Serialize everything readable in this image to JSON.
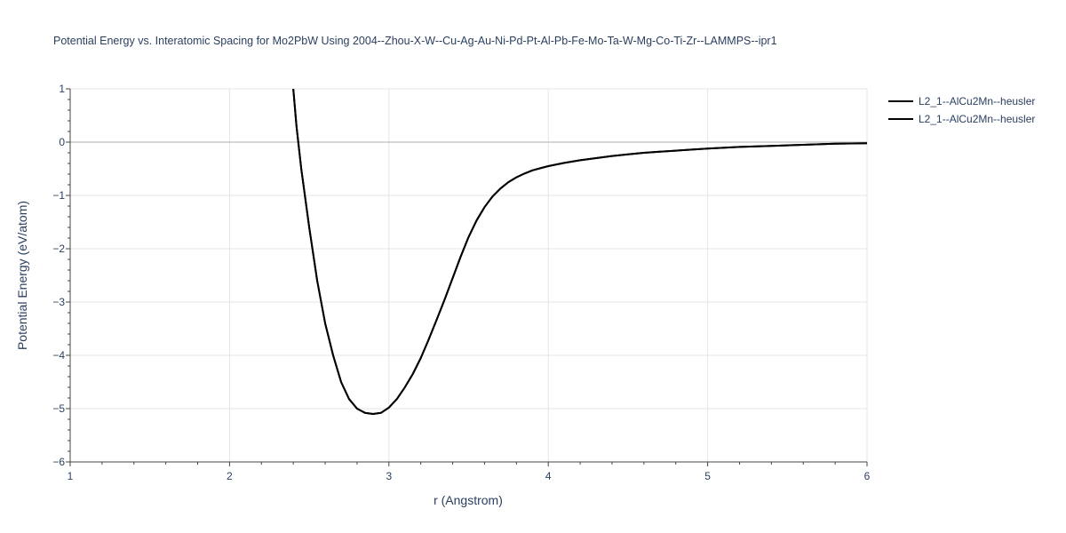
{
  "chart_data": {
    "type": "line",
    "title": "Potential Energy vs. Interatomic Spacing for Mo2PbW Using 2004--Zhou-X-W--Cu-Ag-Au-Ni-Pd-Pt-Al-Pb-Fe-Mo-Ta-W-Mg-Co-Ti-Zr--LAMMPS--ipr1",
    "xlabel": "r (Angstrom)",
    "ylabel": "Potential Energy (eV/atom)",
    "xlim": [
      1,
      6
    ],
    "ylim": [
      -6,
      1
    ],
    "x_ticks": [
      1,
      2,
      3,
      4,
      5,
      6
    ],
    "x_tick_labels": [
      "1",
      "2",
      "3",
      "4",
      "5",
      "6"
    ],
    "y_ticks": [
      -6,
      -5,
      -4,
      -3,
      -2,
      -1,
      0,
      1
    ],
    "y_tick_labels": [
      "−6",
      "−5",
      "−4",
      "−3",
      "−2",
      "−1",
      "0",
      "1"
    ],
    "grid": true,
    "legend_position": "top-right",
    "series": [
      {
        "name": "L2_1--AlCu2Mn--heusler",
        "color": "#000000",
        "x": [
          2.4,
          2.42,
          2.45,
          2.5,
          2.55,
          2.6,
          2.65,
          2.7,
          2.75,
          2.8,
          2.85,
          2.9,
          2.95,
          3.0,
          3.05,
          3.1,
          3.15,
          3.2,
          3.25,
          3.3,
          3.35,
          3.4,
          3.45,
          3.5,
          3.55,
          3.6,
          3.65,
          3.7,
          3.75,
          3.8,
          3.85,
          3.9,
          3.95,
          4.0,
          4.1,
          4.2,
          4.3,
          4.4,
          4.5,
          4.6,
          4.7,
          4.8,
          4.9,
          5.0,
          5.2,
          5.4,
          5.6,
          5.8,
          6.0
        ],
        "y": [
          1.0,
          0.3,
          -0.5,
          -1.6,
          -2.6,
          -3.4,
          -4.0,
          -4.5,
          -4.82,
          -5.0,
          -5.08,
          -5.1,
          -5.08,
          -4.98,
          -4.82,
          -4.6,
          -4.35,
          -4.05,
          -3.7,
          -3.33,
          -2.95,
          -2.55,
          -2.15,
          -1.78,
          -1.47,
          -1.22,
          -1.02,
          -0.87,
          -0.75,
          -0.66,
          -0.59,
          -0.53,
          -0.49,
          -0.45,
          -0.39,
          -0.34,
          -0.3,
          -0.26,
          -0.23,
          -0.2,
          -0.18,
          -0.16,
          -0.14,
          -0.12,
          -0.09,
          -0.07,
          -0.05,
          -0.03,
          -0.02
        ]
      },
      {
        "name": "L2_1--AlCu2Mn--heusler",
        "color": "#000000",
        "x": [
          2.4,
          2.42,
          2.45,
          2.5,
          2.55,
          2.6,
          2.65,
          2.7,
          2.75,
          2.8,
          2.85,
          2.9,
          2.95,
          3.0,
          3.05,
          3.1,
          3.15,
          3.2,
          3.25,
          3.3,
          3.35,
          3.4,
          3.45,
          3.5,
          3.55,
          3.6,
          3.65,
          3.7,
          3.75,
          3.8,
          3.85,
          3.9,
          3.95,
          4.0,
          4.1,
          4.2,
          4.3,
          4.4,
          4.5,
          4.6,
          4.7,
          4.8,
          4.9,
          5.0,
          5.2,
          5.4,
          5.6,
          5.8,
          6.0
        ],
        "y": [
          1.0,
          0.3,
          -0.5,
          -1.6,
          -2.6,
          -3.4,
          -4.0,
          -4.5,
          -4.82,
          -5.0,
          -5.08,
          -5.1,
          -5.08,
          -4.98,
          -4.82,
          -4.6,
          -4.35,
          -4.05,
          -3.7,
          -3.33,
          -2.95,
          -2.55,
          -2.15,
          -1.78,
          -1.47,
          -1.22,
          -1.02,
          -0.87,
          -0.75,
          -0.66,
          -0.59,
          -0.53,
          -0.49,
          -0.45,
          -0.39,
          -0.34,
          -0.3,
          -0.26,
          -0.23,
          -0.2,
          -0.18,
          -0.16,
          -0.14,
          -0.12,
          -0.09,
          -0.07,
          -0.05,
          -0.03,
          -0.02
        ]
      }
    ]
  }
}
